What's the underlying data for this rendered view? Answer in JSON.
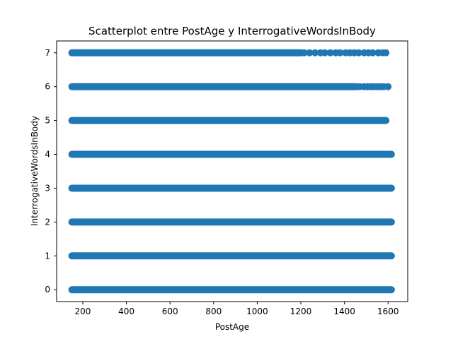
{
  "chart_data": {
    "type": "scatter",
    "title": "Scatterplot entre PostAge y InterrogativeWordsInBody",
    "xlabel": "PostAge",
    "ylabel": "InterrogativeWordsInBody",
    "xlim": [
      80,
      1690
    ],
    "ylim": [
      -0.35,
      7.35
    ],
    "xticks": [
      200,
      400,
      600,
      800,
      1000,
      1200,
      1400,
      1600
    ],
    "yticks": [
      0,
      1,
      2,
      3,
      4,
      5,
      6,
      7
    ],
    "marker_color": "#1f77b4",
    "series": [
      {
        "segments": [
          {
            "y": 0,
            "x_start": 150,
            "x_end": 1615
          },
          {
            "y": 1,
            "x_start": 150,
            "x_end": 1615
          },
          {
            "y": 2,
            "x_start": 150,
            "x_end": 1615
          },
          {
            "y": 3,
            "x_start": 150,
            "x_end": 1615
          },
          {
            "y": 4,
            "x_start": 150,
            "x_end": 1615
          },
          {
            "y": 5,
            "x_start": 150,
            "x_end": 1590
          },
          {
            "y": 6,
            "x_start": 150,
            "x_end": 1455
          },
          {
            "y": 7,
            "x_start": 150,
            "x_end": 1200
          }
        ],
        "sparse_points": [
          {
            "y": 6,
            "x": [
              1470,
              1490,
              1505,
              1520,
              1535,
              1550,
              1565,
              1580,
              1600
            ]
          },
          {
            "y": 7,
            "x": [
              1215,
              1240,
              1265,
              1290,
              1310,
              1335,
              1360,
              1380,
              1405,
              1425,
              1445,
              1465,
              1490,
              1510,
              1530,
              1555,
              1575,
              1590
            ]
          }
        ]
      }
    ]
  }
}
